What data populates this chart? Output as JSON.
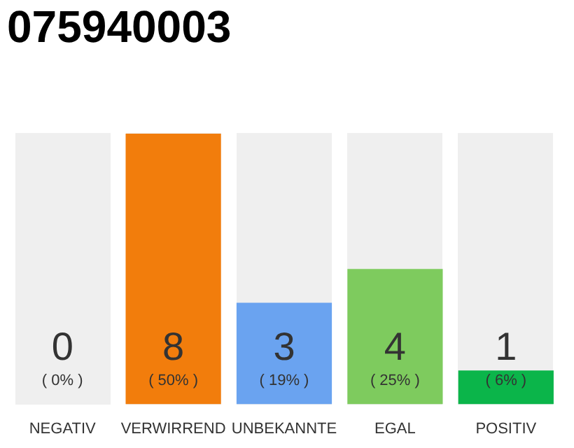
{
  "chart_data": {
    "type": "bar",
    "title": "075940003",
    "categories": [
      "NEGATIV",
      "VERWIRREND",
      "UNBEKANNTE",
      "EGAL",
      "POSITIV"
    ],
    "values": [
      0,
      8,
      3,
      4,
      1
    ],
    "colors": [
      "#0bb54a",
      "#f27d0c",
      "#6aa3f0",
      "#7ecb5e",
      "#0bb54a"
    ],
    "ylim": [
      0,
      8
    ],
    "tick_labels": "x",
    "data_labels": true,
    "grid": false,
    "legend": false,
    "annotations": [
      "( 0% )",
      "( 50% )",
      "( 19% )",
      "( 25% )",
      "( 6% )"
    ]
  }
}
